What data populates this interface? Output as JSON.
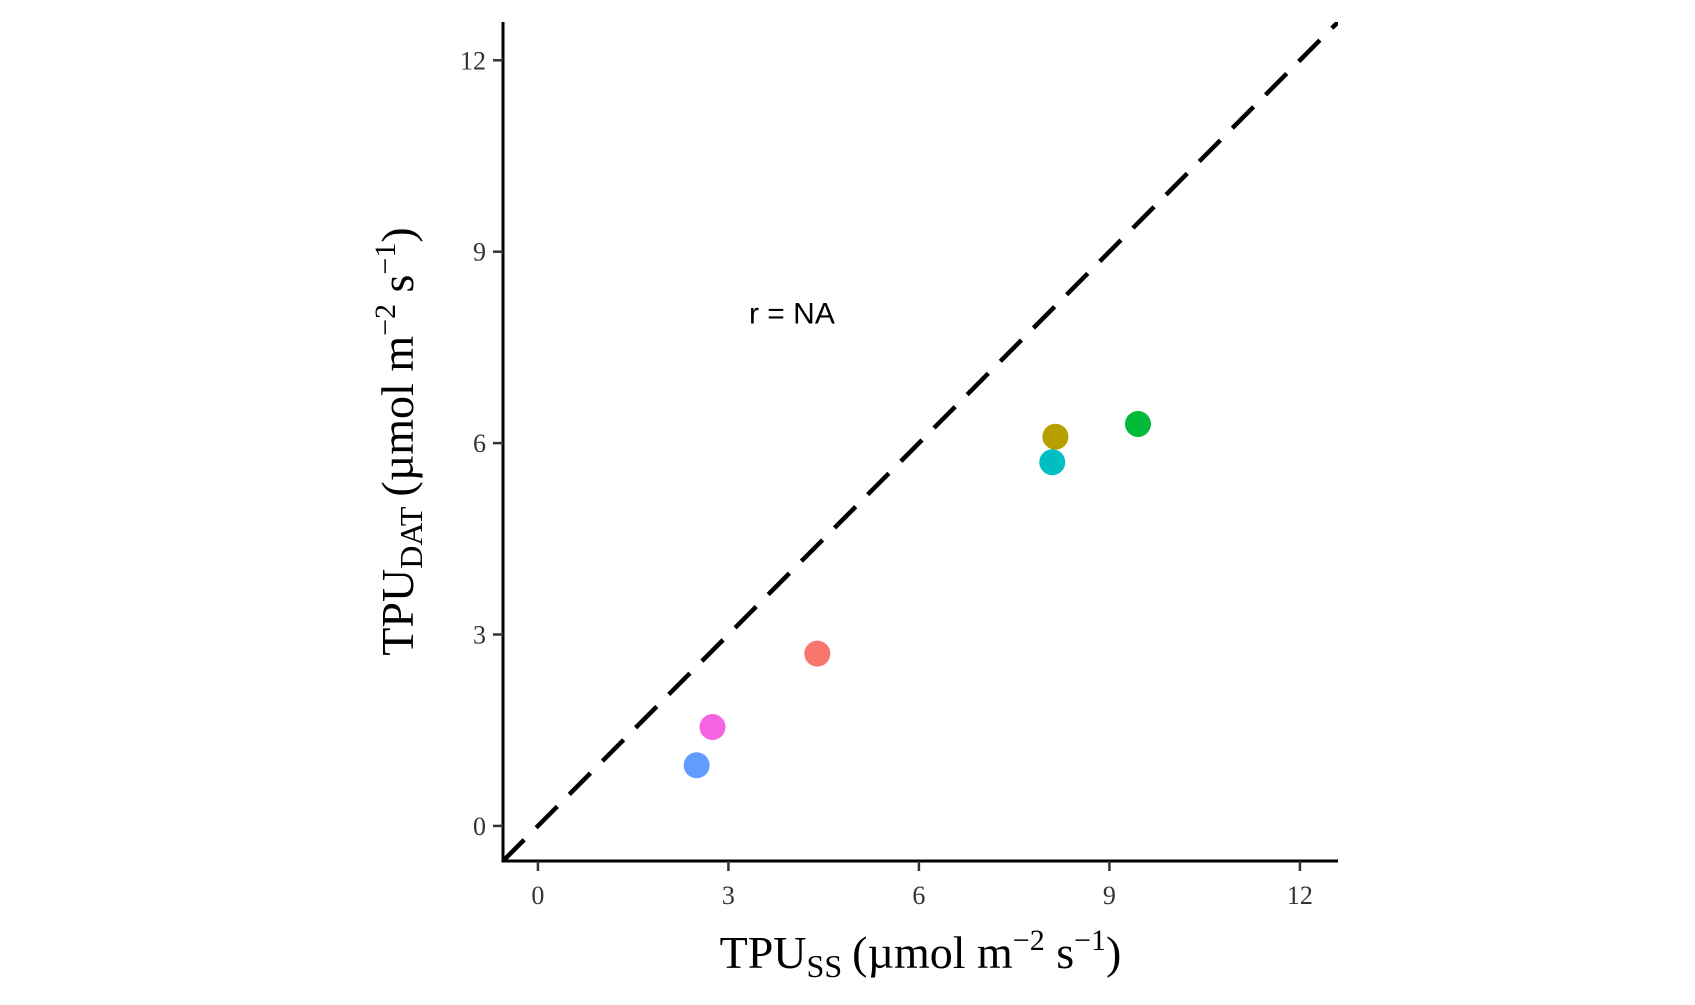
{
  "chart_data": {
    "type": "scatter",
    "title": "",
    "xlabel": {
      "base": "TPU",
      "subscript": "SS",
      "units_a": "(µmol m",
      "exp1": "−2",
      "units_b": " s",
      "exp2": "−1",
      "close": ")"
    },
    "ylabel": {
      "base": "TPU",
      "subscript": "DAT",
      "units_a": "(µmol m",
      "exp1": "−2",
      "units_b": " s",
      "exp2": "−1",
      "close": ")"
    },
    "xlim": [
      -0.55,
      12.6
    ],
    "ylim": [
      -0.55,
      12.6
    ],
    "xticks": [
      0,
      3,
      6,
      9,
      12
    ],
    "yticks": [
      0,
      3,
      6,
      9,
      12
    ],
    "xtick_labels": [
      "0",
      "3",
      "6",
      "9",
      "12"
    ],
    "ytick_labels": [
      "0",
      "3",
      "6",
      "9",
      "12"
    ],
    "grid": false,
    "legend": "none",
    "reference_line": {
      "type": "identity",
      "style": "dashed",
      "color": "#000000"
    },
    "annotation": {
      "text": "r = NA",
      "x": 4.0,
      "y": 8.0
    },
    "points": [
      {
        "x": 4.4,
        "y": 2.7,
        "color": "#F8766D"
      },
      {
        "x": 8.15,
        "y": 6.1,
        "color": "#B79F00"
      },
      {
        "x": 9.45,
        "y": 6.3,
        "color": "#00BA38"
      },
      {
        "x": 8.1,
        "y": 5.7,
        "color": "#00BFC4"
      },
      {
        "x": 2.5,
        "y": 0.95,
        "color": "#619CFF"
      },
      {
        "x": 2.75,
        "y": 1.55,
        "color": "#F564E3"
      }
    ]
  }
}
